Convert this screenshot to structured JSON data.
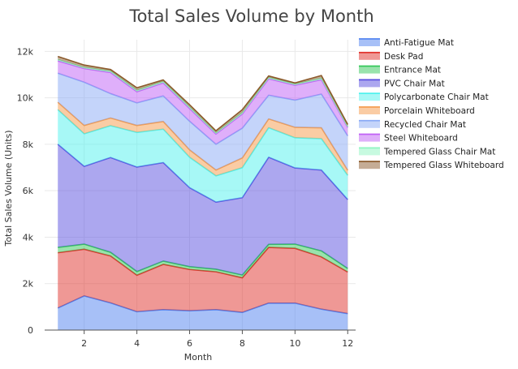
{
  "chart_data": {
    "type": "area",
    "stacked": true,
    "title": "Total Sales Volume by Month",
    "xlabel": "Month",
    "ylabel": "Total Sales Volume (Units)",
    "x": [
      1,
      2,
      3,
      4,
      5,
      6,
      7,
      8,
      9,
      10,
      11,
      12
    ],
    "xlim": [
      0.5,
      12.3
    ],
    "ylim": [
      0,
      12500
    ],
    "x_ticks": [
      2,
      4,
      6,
      8,
      10,
      12
    ],
    "x_tick_labels": [
      "2",
      "4",
      "6",
      "8",
      "10",
      "12"
    ],
    "y_ticks": [
      0,
      2000,
      4000,
      6000,
      8000,
      10000,
      12000
    ],
    "y_tick_labels": [
      "0",
      "2k",
      "4k",
      "6k",
      "8k",
      "10k",
      "12k"
    ],
    "grid": true,
    "legend_position": "right",
    "series": [
      {
        "name": "Anti-Fatigue Mat",
        "color": "#4f81f0",
        "values": [
          950,
          1470,
          1170,
          790,
          880,
          830,
          880,
          760,
          1160,
          1160,
          900,
          710
        ]
      },
      {
        "name": "Desk Pad",
        "color": "#e0312b",
        "values": [
          2380,
          2010,
          2020,
          1570,
          1950,
          1780,
          1630,
          1490,
          2400,
          2360,
          2250,
          1790
        ]
      },
      {
        "name": "Entrance Mat",
        "color": "#34c759",
        "values": [
          230,
          220,
          160,
          160,
          140,
          120,
          110,
          120,
          130,
          180,
          260,
          150
        ]
      },
      {
        "name": "PVC Chair Mat",
        "color": "#5a4fe0",
        "values": [
          4440,
          3350,
          4080,
          4500,
          4240,
          3400,
          2890,
          3330,
          3750,
          3280,
          3480,
          2970
        ]
      },
      {
        "name": "Polycarbonate Chair Mat",
        "color": "#4ff2ee",
        "values": [
          1490,
          1400,
          1370,
          1490,
          1440,
          1310,
          1130,
          1290,
          1270,
          1300,
          1350,
          1040
        ]
      },
      {
        "name": "Porcelain Whiteboard",
        "color": "#f59a4a",
        "values": [
          320,
          360,
          330,
          300,
          330,
          320,
          250,
          420,
          380,
          450,
          470,
          220
        ]
      },
      {
        "name": "Recycled Chair Mat",
        "color": "#8aaaf5",
        "values": [
          1250,
          1860,
          1050,
          970,
          1100,
          1230,
          1110,
          1280,
          1020,
          1170,
          1450,
          1480
        ]
      },
      {
        "name": "Steel Whiteboard",
        "color": "#c05ff5",
        "values": [
          530,
          590,
          910,
          480,
          560,
          550,
          440,
          610,
          710,
          640,
          620,
          360
        ]
      },
      {
        "name": "Tempered Glass Chair Mat",
        "color": "#8ff5c2",
        "values": [
          60,
          50,
          60,
          60,
          60,
          60,
          50,
          60,
          50,
          50,
          60,
          40
        ]
      },
      {
        "name": "Tempered Glass Whiteboard",
        "color": "#8b5a2b",
        "values": [
          130,
          100,
          70,
          110,
          70,
          100,
          90,
          130,
          70,
          50,
          120,
          90
        ]
      }
    ]
  }
}
